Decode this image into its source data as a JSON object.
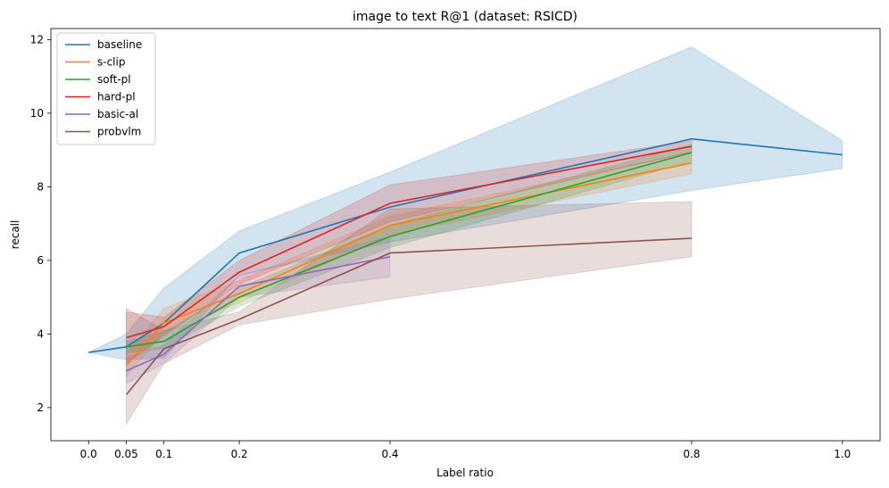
{
  "chart_data": {
    "type": "line",
    "title": "image to text R@1 (dataset: RSICD)",
    "xlabel": "Label ratio",
    "ylabel": "recall",
    "x_ticks": [
      0.0,
      0.05,
      0.1,
      0.2,
      0.4,
      0.8,
      1.0
    ],
    "x_tick_labels": [
      "0.0",
      "0.05",
      "0.1",
      "0.2",
      "0.4",
      "0.8",
      "1.0"
    ],
    "y_ticks": [
      2,
      4,
      6,
      8,
      10,
      12
    ],
    "y_tick_labels": [
      "2",
      "4",
      "6",
      "8",
      "10",
      "12"
    ],
    "xlim": [
      -0.05,
      1.05
    ],
    "ylim": [
      1.1,
      12.3
    ],
    "grid": false,
    "legend_position": "top-left",
    "series": [
      {
        "name": "baseline",
        "color": "#1f77b4",
        "x": [
          0.0,
          0.05,
          0.1,
          0.2,
          0.4,
          0.8,
          1.0
        ],
        "y": [
          3.5,
          3.65,
          4.3,
          6.2,
          7.45,
          9.3,
          8.87
        ],
        "band_x": [
          0.0,
          0.05,
          0.1,
          0.2,
          0.4,
          0.8,
          1.0
        ],
        "band_low": [
          3.5,
          3.3,
          3.35,
          5.6,
          6.5,
          7.9,
          8.5
        ],
        "band_high": [
          3.5,
          4.0,
          5.25,
          6.8,
          8.4,
          11.8,
          9.25
        ]
      },
      {
        "name": "s-clip",
        "color": "#ff7f0e",
        "x": [
          0.05,
          0.1,
          0.2,
          0.4,
          0.8
        ],
        "y": [
          3.15,
          4.3,
          5.1,
          6.95,
          8.65
        ],
        "band_x": [
          0.05,
          0.1,
          0.2,
          0.4,
          0.8
        ],
        "band_low": [
          2.85,
          4.05,
          4.85,
          6.7,
          8.35
        ],
        "band_high": [
          3.45,
          4.7,
          5.45,
          7.2,
          8.95
        ]
      },
      {
        "name": "soft-pl",
        "color": "#2ca02c",
        "x": [
          0.05,
          0.1,
          0.2,
          0.4,
          0.8
        ],
        "y": [
          3.65,
          3.8,
          5.0,
          6.65,
          8.93
        ],
        "band_x": [
          0.05,
          0.1,
          0.2,
          0.4,
          0.8
        ],
        "band_low": [
          3.5,
          3.6,
          4.75,
          6.35,
          8.7
        ],
        "band_high": [
          3.8,
          4.05,
          5.25,
          6.95,
          9.15
        ]
      },
      {
        "name": "hard-pl",
        "color": "#d62728",
        "x": [
          0.05,
          0.1,
          0.2,
          0.4,
          0.8
        ],
        "y": [
          3.9,
          4.2,
          5.68,
          7.55,
          9.1
        ],
        "band_x": [
          0.05,
          0.1,
          0.2,
          0.4,
          0.8
        ],
        "band_low": [
          3.2,
          3.95,
          5.35,
          7.05,
          8.95
        ],
        "band_high": [
          4.6,
          4.45,
          6.0,
          8.05,
          9.25
        ]
      },
      {
        "name": "basic-al",
        "color": "#9467bd",
        "x": [
          0.05,
          0.1,
          0.2,
          0.4
        ],
        "y": [
          3.0,
          3.45,
          5.3,
          6.1
        ],
        "band_x": [
          0.05,
          0.1,
          0.2,
          0.4
        ],
        "band_low": [
          2.65,
          3.2,
          5.0,
          5.55
        ],
        "band_high": [
          3.35,
          3.7,
          5.6,
          6.65
        ]
      },
      {
        "name": "probvlm",
        "color": "#8c564b",
        "x": [
          0.05,
          0.1,
          0.2,
          0.4,
          0.8
        ],
        "y": [
          2.35,
          3.6,
          4.4,
          6.2,
          6.6
        ],
        "band_x": [
          0.05,
          0.1,
          0.2,
          0.4,
          0.8
        ],
        "band_low": [
          1.55,
          3.2,
          4.25,
          4.95,
          6.1
        ],
        "band_high": [
          4.7,
          4.1,
          4.6,
          7.4,
          7.6
        ]
      }
    ]
  }
}
